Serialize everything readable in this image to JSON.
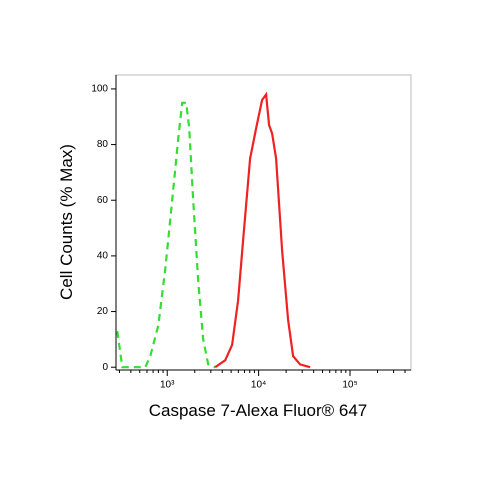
{
  "chart_data": {
    "type": "line",
    "xlabel": "Caspase 7-Alexa Fluor® 647",
    "ylabel": "Cell Counts (% Max)",
    "xscale": "log",
    "xlim": [
      275,
      465000
    ],
    "ylim": [
      -1,
      105
    ],
    "xticks": [
      {
        "value": 1000,
        "label": "10³"
      },
      {
        "value": 10000,
        "label": "10⁴"
      },
      {
        "value": 100000,
        "label": "10⁵"
      }
    ],
    "yticks": [
      0,
      20,
      40,
      60,
      80,
      100
    ],
    "series": [
      {
        "color": "#33dd33",
        "dash": true,
        "x": [
          284,
          322,
          575,
          652,
          798,
          950,
          1134,
          1319,
          1458,
          1614,
          1739,
          1924,
          2181,
          2473,
          2805,
          3350
        ],
        "values": [
          13,
          0,
          0,
          4,
          15,
          35,
          60,
          82,
          95,
          95,
          86,
          60,
          31,
          10,
          1,
          0
        ]
      },
      {
        "color": "#ee2222",
        "dash": false,
        "x": [
          3350,
          4305,
          5128,
          5970,
          6776,
          8075,
          9397,
          10920,
          12080,
          13030,
          14050,
          15540,
          18060,
          21000,
          23840,
          28430,
          36560
        ],
        "values": [
          0,
          2.5,
          8,
          24,
          46,
          75,
          86,
          96,
          98,
          87,
          84,
          75,
          42,
          17,
          4,
          1,
          0
        ]
      }
    ]
  }
}
